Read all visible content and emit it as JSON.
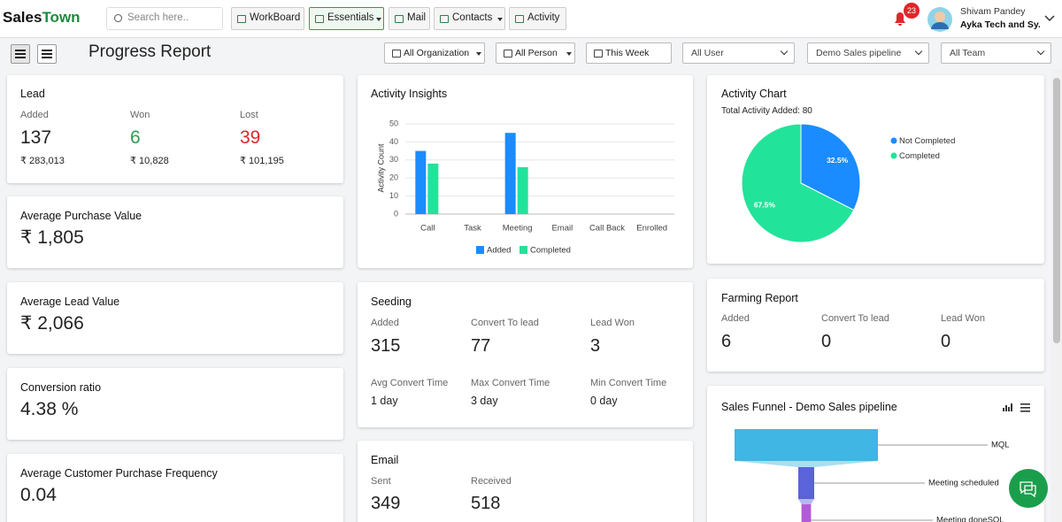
{
  "header": {
    "brand_1": "Sales",
    "brand_2": "Town",
    "search_placeholder": "Search here..",
    "nav": [
      "WorkBoard",
      "Essentials",
      "Mail",
      "Contacts",
      "Activity"
    ],
    "notifications": 23,
    "user_name": "Shivam Pandey",
    "company": "Ayka Tech and Sy."
  },
  "toolbar": {
    "title": "Progress Report",
    "filters": [
      "All Organization",
      "All Person",
      "This Week"
    ],
    "selects": [
      "All User",
      "Demo Sales pipeline",
      "All Team"
    ]
  },
  "lead": {
    "title": "Lead",
    "stats": [
      {
        "label": "Added",
        "value": 137,
        "amount": "₹ 283,013",
        "color": "#222222"
      },
      {
        "label": "Won",
        "value": 6,
        "amount": "₹ 10,828",
        "color": "#2e9e4f"
      },
      {
        "label": "Lost",
        "value": 39,
        "amount": "₹ 101,195",
        "color": "#e0262b"
      }
    ]
  },
  "metric_cards": [
    {
      "title": "Average Purchase Value",
      "value": "₹ 1,805"
    },
    {
      "title": "Average Lead Value",
      "value": "₹ 2,066"
    },
    {
      "title": "Conversion ratio",
      "value": "4.38 %"
    },
    {
      "title": "Average Customer Purchase Frequency",
      "value": "0.04"
    }
  ],
  "activity_insights": {
    "type": "bar",
    "title": "Activity Insights",
    "y_label": "Activity Count",
    "categories": [
      "Call",
      "Task",
      "Meeting",
      "Email",
      "Call Back",
      "Enrolled"
    ],
    "series": [
      {
        "name": "Added",
        "color": "#1a8cff",
        "values": [
          35,
          0,
          45,
          0,
          0,
          0
        ]
      },
      {
        "name": "Completed",
        "color": "#22e39a",
        "values": [
          28,
          0,
          26,
          0,
          0,
          0
        ]
      }
    ],
    "ylim": [
      0,
      50
    ],
    "yticks": [
      0,
      10,
      20,
      30,
      40,
      50
    ],
    "grid": true
  },
  "activity_chart": {
    "type": "pie",
    "title": "Activity Chart",
    "subtitle": "Total Activity Added: 80",
    "categories": [
      "Not Completed",
      "Completed"
    ],
    "values": [
      32.5,
      67.5
    ],
    "value_labels": [
      "32.5%",
      "67.5%"
    ],
    "colors": [
      "#1a8cff",
      "#22e39a"
    ]
  },
  "seeding": {
    "title": "Seeding",
    "stats": [
      {
        "label": "Added",
        "value": 315
      },
      {
        "label": "Convert To lead",
        "value": 77
      },
      {
        "label": "Lead Won",
        "value": 3
      },
      {
        "label": "Avg Convert Time",
        "value": "1 day"
      },
      {
        "label": "Max Convert Time",
        "value": "3 day"
      },
      {
        "label": "Min Convert Time",
        "value": "0 day"
      }
    ]
  },
  "email": {
    "title": "Email",
    "stats": [
      {
        "label": "Sent",
        "value": 349
      },
      {
        "label": "Received",
        "value": 518
      }
    ]
  },
  "farming_report": {
    "title": "Farming Report",
    "stats": [
      {
        "label": "Added",
        "value": 6
      },
      {
        "label": "Convert To lead",
        "value": 0
      },
      {
        "label": "Lead Won",
        "value": 0
      }
    ]
  },
  "sales_funnel": {
    "type": "funnel",
    "title": "Sales Funnel - Demo Sales pipeline",
    "categories": [
      "MQL",
      "Meeting scheduled",
      "Meeting doneSQL"
    ],
    "values": [
      45,
      5,
      3
    ],
    "colors": [
      "#3fb6e4",
      "#5a63d8",
      "#b45ad8"
    ]
  }
}
